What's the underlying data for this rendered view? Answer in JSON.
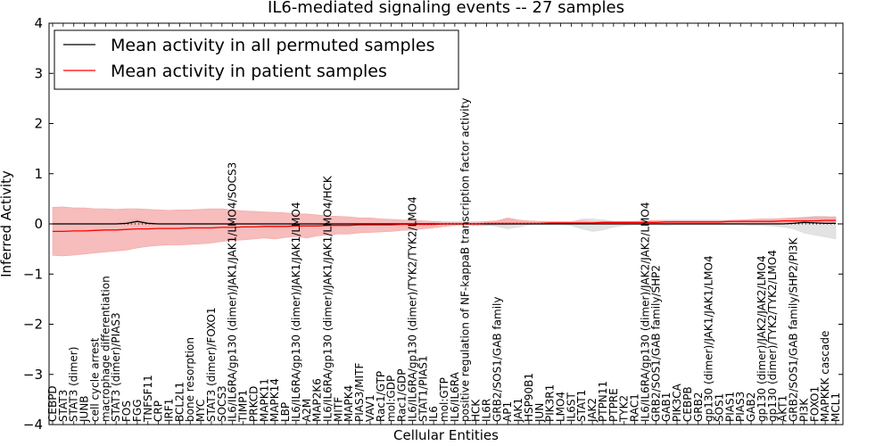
{
  "chart_data": {
    "type": "line",
    "title": "IL6-mediated signaling events -- 27 samples",
    "xlabel": "Cellular Entities",
    "ylabel": "Inferred Activity",
    "ylim": [
      -4,
      4
    ],
    "yticks": [
      -4,
      -3,
      -2,
      -1,
      0,
      1,
      2,
      3,
      4
    ],
    "ytick_labels": [
      "−4",
      "−3",
      "−2",
      "−1",
      "0",
      "1",
      "2",
      "3",
      "4"
    ],
    "grid": false,
    "legend_position": "top-left",
    "categories": [
      "CEBPD",
      "STAT3",
      "STAT3 (dimer)",
      "JUNB",
      "cell cycle arrest",
      "macrophage differentiation",
      "STAT3 (dimer)/PIAS3",
      "FOS",
      "FGG",
      "TNFSF11",
      "CRP",
      "IRF1",
      "BCL2L1",
      "bone resorption",
      "MYC",
      "STAT3 (dimer)/FOXO1",
      "SOCS3",
      "IL6/IL6RA/gp130 (dimer)/JAK1/JAK1/LMO4/SOCS3",
      "TIMP1",
      "PRKCD",
      "MAPK11",
      "MAPK14",
      "LBP",
      "IL6/IL6RA/gp130 (dimer)/JAK1/JAK1/LMO4",
      "A2M",
      "MAP2K6",
      "IL6/IL6RA/gp130 (dimer)/JAK1/JAK1/LMO4/HCK",
      "MITF",
      "MAPK4",
      "PIAS3/MITF",
      "VAV1",
      "Rac1/GTP",
      "mol:GDP",
      "Rac1/GDP",
      "IL6/IL6RA/gp130 (dimer)/TYK2/TYK2/LMO4",
      "STAT1/PIAS1",
      "IL6",
      "mol:GTP",
      "IL6/IL6RA",
      "positive regulation of NF-kappaB transcription factor activity",
      "HCK",
      "IL6R",
      "GRB2/SOS1/GAB family",
      "AP1",
      "JAK1",
      "HSP90B1",
      "JUN",
      "PIK3R1",
      "LMO4",
      "IL6ST",
      "STAT1",
      "JAK2",
      "PTPN11",
      "PTPRE",
      "TYK2",
      "RAC1",
      "IL6/IL6RA/gp130 (dimer)/JAK2/JAK2/LMO4",
      "GRB2/SOS1/GAB family/SHP2",
      "GAB1",
      "PIK3CA",
      "CEBPB",
      "GRB2",
      "gp130 (dimer)/JAK1/JAK1/LMO4",
      "SOS1",
      "PIAS1",
      "PIAS3",
      "GAB2",
      "gp130 (dimer)/JAK2/JAK2/LMO4",
      "gp130 (dimer)/TYK2/TYK2/LMO4",
      "AKT1",
      "GRB2/SOS1/GAB family/SHP2/PI3K",
      "PI3K",
      "FOXO1",
      "MAPKKK cascade",
      "MCL1"
    ],
    "series": [
      {
        "name": "Mean activity in all permuted samples",
        "color": "#000000",
        "band_color": "#d9d9d9",
        "values": [
          0,
          0,
          0,
          0,
          0,
          0,
          0,
          0.01,
          0.05,
          0.01,
          0,
          0,
          0,
          0,
          0,
          0,
          0,
          0,
          0,
          0,
          0,
          0,
          0,
          0,
          0,
          0,
          0,
          0,
          0,
          0,
          0,
          0,
          0,
          0,
          0,
          0,
          0,
          0,
          0,
          0,
          0,
          0,
          0,
          0,
          0,
          0,
          0,
          0,
          0,
          0,
          0,
          0,
          0,
          0,
          0,
          0,
          0,
          0,
          0,
          0,
          0,
          0,
          0,
          0,
          0,
          0,
          0,
          0,
          0,
          0,
          0.01,
          0.03,
          0.02,
          0.01,
          0.01
        ],
        "lower": [
          -0.01,
          -0.01,
          -0.01,
          -0.01,
          -0.01,
          -0.01,
          -0.01,
          -0.02,
          -0.02,
          -0.02,
          -0.01,
          -0.01,
          -0.01,
          -0.01,
          -0.01,
          -0.01,
          -0.01,
          -0.01,
          -0.01,
          -0.01,
          -0.01,
          -0.01,
          -0.01,
          -0.01,
          -0.01,
          -0.01,
          -0.01,
          -0.01,
          -0.01,
          -0.01,
          -0.01,
          -0.01,
          -0.01,
          -0.01,
          -0.01,
          -0.01,
          -0.01,
          -0.01,
          -0.01,
          -0.01,
          -0.01,
          -0.01,
          -0.05,
          -0.1,
          -0.06,
          -0.02,
          -0.02,
          -0.02,
          -0.02,
          -0.03,
          -0.1,
          -0.15,
          -0.12,
          -0.06,
          -0.03,
          -0.02,
          -0.02,
          -0.02,
          -0.03,
          -0.02,
          -0.02,
          -0.02,
          -0.02,
          -0.02,
          -0.02,
          -0.02,
          -0.03,
          -0.03,
          -0.04,
          -0.06,
          -0.1,
          -0.18,
          -0.22,
          -0.26,
          -0.3
        ],
        "upper": [
          0.01,
          0.01,
          0.01,
          0.01,
          0.01,
          0.01,
          0.01,
          0.06,
          0.1,
          0.04,
          0.01,
          0.01,
          0.01,
          0.01,
          0.01,
          0.01,
          0.01,
          0.01,
          0.01,
          0.01,
          0.01,
          0.01,
          0.01,
          0.01,
          0.01,
          0.01,
          0.01,
          0.01,
          0.01,
          0.01,
          0.01,
          0.01,
          0.01,
          0.01,
          0.01,
          0.01,
          0.01,
          0.01,
          0.01,
          0.01,
          0.01,
          0.01,
          0.05,
          0.1,
          0.06,
          0.03,
          0.03,
          0.03,
          0.03,
          0.03,
          0.1,
          0.1,
          0.08,
          0.05,
          0.03,
          0.02,
          0.02,
          0.03,
          0.03,
          0.03,
          0.03,
          0.03,
          0.03,
          0.03,
          0.03,
          0.03,
          0.04,
          0.05,
          0.06,
          0.08,
          0.1,
          0.13,
          0.15,
          0.15,
          0.12
        ]
      },
      {
        "name": "Mean activity in patient samples",
        "color": "#ff0000",
        "band_color": "#f4a6a6",
        "values": [
          -0.15,
          -0.15,
          -0.14,
          -0.14,
          -0.13,
          -0.12,
          -0.12,
          -0.11,
          -0.1,
          -0.1,
          -0.09,
          -0.09,
          -0.09,
          -0.08,
          -0.08,
          -0.08,
          -0.07,
          -0.07,
          -0.06,
          -0.06,
          -0.05,
          -0.05,
          -0.05,
          -0.04,
          -0.04,
          -0.04,
          -0.03,
          -0.03,
          -0.03,
          -0.02,
          -0.02,
          -0.02,
          -0.02,
          -0.01,
          -0.01,
          -0.01,
          -0.01,
          0,
          0,
          0,
          0,
          0.01,
          0.01,
          0.01,
          0.01,
          0.01,
          0.01,
          0.02,
          0.02,
          0.02,
          0.02,
          0.02,
          0.03,
          0.03,
          0.03,
          0.03,
          0.03,
          0.03,
          0.04,
          0.04,
          0.04,
          0.04,
          0.04,
          0.04,
          0.05,
          0.05,
          0.05,
          0.05,
          0.05,
          0.06,
          0.06,
          0.06,
          0.06,
          0.07,
          0.07
        ],
        "lower": [
          -0.63,
          -0.64,
          -0.62,
          -0.6,
          -0.58,
          -0.56,
          -0.54,
          -0.52,
          -0.48,
          -0.45,
          -0.43,
          -0.42,
          -0.42,
          -0.41,
          -0.4,
          -0.38,
          -0.35,
          -0.33,
          -0.32,
          -0.3,
          -0.28,
          -0.3,
          -0.27,
          -0.25,
          -0.28,
          -0.24,
          -0.22,
          -0.2,
          -0.2,
          -0.18,
          -0.17,
          -0.16,
          -0.15,
          -0.13,
          -0.12,
          -0.1,
          -0.08,
          -0.05,
          -0.03,
          -0.02,
          -0.03,
          -0.03,
          -0.02,
          -0.02,
          -0.01,
          -0.01,
          0,
          0,
          0,
          0,
          0,
          0,
          0,
          0,
          0,
          0,
          0,
          0,
          0,
          0.01,
          0.01,
          0.01,
          0.01,
          0.01,
          0.01,
          0.01,
          0.01,
          0.01,
          0.01,
          0.02,
          0.02,
          0.02,
          0.02,
          0.03,
          0.03
        ],
        "upper": [
          0.33,
          0.34,
          0.32,
          0.32,
          0.3,
          0.3,
          0.29,
          0.3,
          0.3,
          0.29,
          0.28,
          0.27,
          0.28,
          0.28,
          0.29,
          0.3,
          0.3,
          0.28,
          0.26,
          0.25,
          0.24,
          0.23,
          0.22,
          0.2,
          0.2,
          0.18,
          0.16,
          0.15,
          0.14,
          0.12,
          0.12,
          0.1,
          0.09,
          0.08,
          0.07,
          0.06,
          0.05,
          0.04,
          0.04,
          0.04,
          0.04,
          0.05,
          0.06,
          0.12,
          0.08,
          0.06,
          0.05,
          0.05,
          0.05,
          0.05,
          0.06,
          0.05,
          0.05,
          0.05,
          0.05,
          0.05,
          0.06,
          0.07,
          0.07,
          0.07,
          0.07,
          0.07,
          0.07,
          0.07,
          0.07,
          0.08,
          0.09,
          0.1,
          0.1,
          0.11,
          0.12,
          0.13,
          0.14,
          0.14,
          0.14
        ]
      }
    ]
  }
}
